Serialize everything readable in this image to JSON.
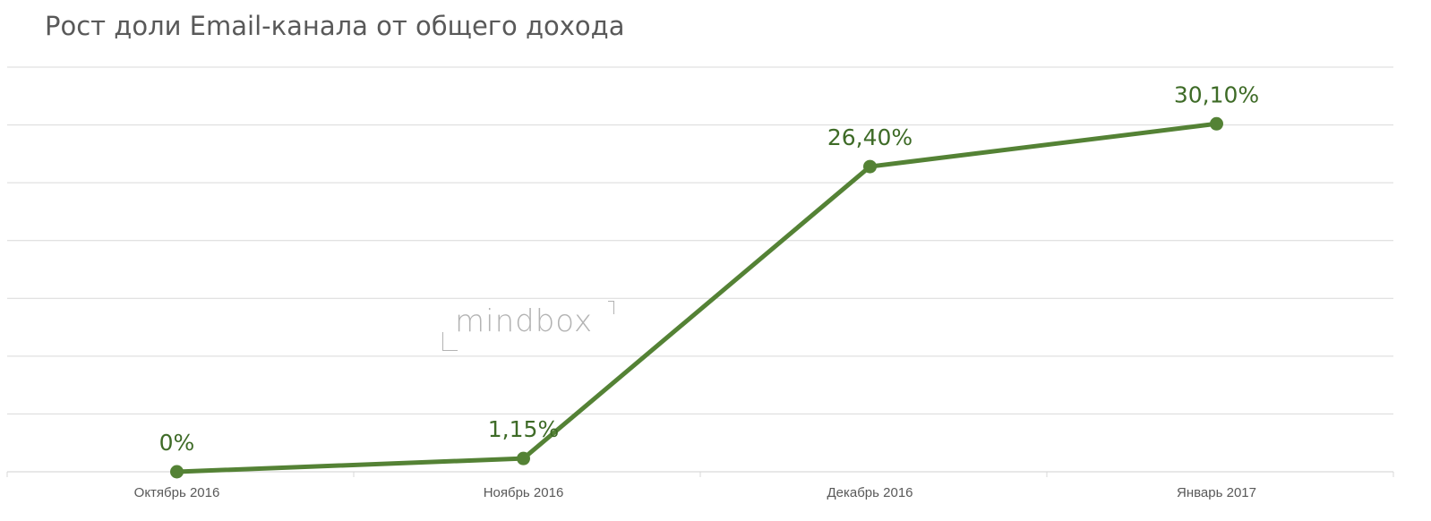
{
  "chart_data": {
    "type": "line",
    "title": "Рост доли Email-канала от общего дохода",
    "categories": [
      "Октябрь 2016",
      "Ноябрь 2016",
      "Декабрь 2016",
      "Январь 2017"
    ],
    "series": [
      {
        "values": [
          0,
          1.15,
          26.4,
          30.1
        ],
        "data_labels": [
          "0%",
          "1,15%",
          "26,40%",
          "30,10%"
        ],
        "color": "#548235"
      }
    ],
    "ylim": [
      0,
      35
    ],
    "grid": true,
    "legend": "none",
    "colors": {
      "line": "#548235",
      "label": "#3e6b27",
      "grid": "#d9d9d9",
      "tick_label": "#595959"
    }
  },
  "watermark": {
    "text": "mindbox"
  }
}
